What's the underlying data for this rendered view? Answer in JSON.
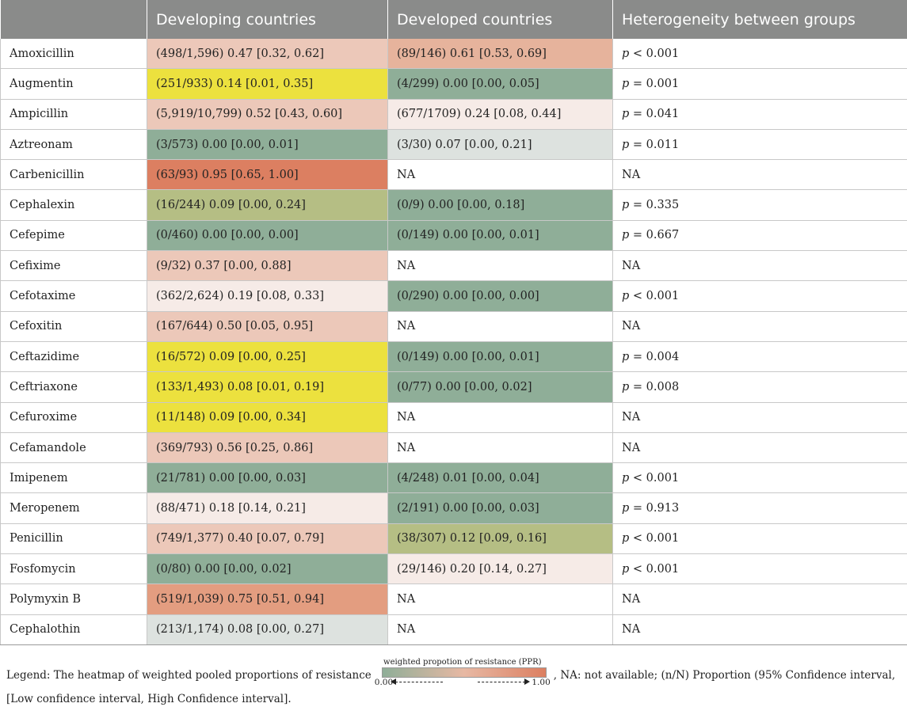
{
  "colors": {
    "header": "#8a8b8a",
    "na": "#ffffff",
    "very_low": "#8fae98",
    "yellow": "#ece13e",
    "olive": "#b5be84",
    "grey_green": "#dde2df",
    "light_pink": "#f6ebe7",
    "pink": "#ecc8b9",
    "salmon": "#e6b39c",
    "orange": "#e39d80",
    "dark_orange": "#dc7f61"
  },
  "table": {
    "headers": [
      "",
      "Developing countries",
      "Developed countries",
      "Heterogeneity between groups"
    ],
    "rows": [
      {
        "drug": "Amoxicillin",
        "developing": "(498/1,596) 0.47 [0.32, 0.62]",
        "developing_color": "pink",
        "developed": "(89/146) 0.61 [0.53, 0.69]",
        "developed_color": "salmon",
        "p_sym": "p",
        "p_text": " < 0.001"
      },
      {
        "drug": "Augmentin",
        "developing": "(251/933) 0.14 [0.01, 0.35]",
        "developing_color": "yellow",
        "developed": "(4/299) 0.00 [0.00, 0.05]",
        "developed_color": "very_low",
        "p_sym": "p",
        "p_text": " = 0.001"
      },
      {
        "drug": "Ampicillin",
        "developing": "(5,919/10,799) 0.52 [0.43, 0.60]",
        "developing_color": "pink",
        "developed": "(677/1709) 0.24 [0.08, 0.44]",
        "developed_color": "light_pink",
        "p_sym": "p",
        "p_text": " = 0.041"
      },
      {
        "drug": "Aztreonam",
        "developing": "(3/573) 0.00 [0.00, 0.01]",
        "developing_color": "very_low",
        "developed": "(3/30) 0.07 [0.00, 0.21]",
        "developed_color": "grey_green",
        "p_sym": "p",
        "p_text": " = 0.011"
      },
      {
        "drug": "Carbenicillin",
        "developing": "(63/93) 0.95 [0.65, 1.00]",
        "developing_color": "dark_orange",
        "developed": "NA",
        "developed_color": "na",
        "p_sym": "",
        "p_text": "NA"
      },
      {
        "drug": "Cephalexin",
        "developing": "(16/244) 0.09 [0.00, 0.24]",
        "developing_color": "olive",
        "developed": "(0/9) 0.00 [0.00, 0.18]",
        "developed_color": "very_low",
        "p_sym": "p",
        "p_text": " = 0.335"
      },
      {
        "drug": "Cefepime",
        "developing": "(0/460) 0.00 [0.00, 0.00]",
        "developing_color": "very_low",
        "developed": "(0/149) 0.00 [0.00, 0.01]",
        "developed_color": "very_low",
        "p_sym": "p",
        "p_text": " = 0.667"
      },
      {
        "drug": "Cefixime",
        "developing": "(9/32) 0.37 [0.00, 0.88]",
        "developing_color": "pink",
        "developed": "NA",
        "developed_color": "na",
        "p_sym": "",
        "p_text": "NA"
      },
      {
        "drug": "Cefotaxime",
        "developing": "(362/2,624) 0.19 [0.08, 0.33]",
        "developing_color": "light_pink",
        "developed": "(0/290) 0.00 [0.00, 0.00]",
        "developed_color": "very_low",
        "p_sym": "p",
        "p_text": " < 0.001"
      },
      {
        "drug": "Cefoxitin",
        "developing": "(167/644) 0.50 [0.05, 0.95]",
        "developing_color": "pink",
        "developed": "NA",
        "developed_color": "na",
        "p_sym": "",
        "p_text": "NA"
      },
      {
        "drug": "Ceftazidime",
        "developing": "(16/572) 0.09 [0.00, 0.25]",
        "developing_color": "yellow",
        "developed": "(0/149) 0.00 [0.00, 0.01]",
        "developed_color": "very_low",
        "p_sym": "p",
        "p_text": " = 0.004"
      },
      {
        "drug": "Ceftriaxone",
        "developing": "(133/1,493) 0.08 [0.01, 0.19]",
        "developing_color": "yellow",
        "developed": "(0/77) 0.00 [0.00, 0.02]",
        "developed_color": "very_low",
        "p_sym": "p",
        "p_text": " = 0.008"
      },
      {
        "drug": "Cefuroxime",
        "developing": "(11/148) 0.09 [0.00, 0.34]",
        "developing_color": "yellow",
        "developed": "NA",
        "developed_color": "na",
        "p_sym": "",
        "p_text": "NA"
      },
      {
        "drug": "Cefamandole",
        "developing": "(369/793) 0.56 [0.25, 0.86]",
        "developing_color": "pink",
        "developed": "NA",
        "developed_color": "na",
        "p_sym": "",
        "p_text": "NA"
      },
      {
        "drug": "Imipenem",
        "developing": "(21/781) 0.00 [0.00, 0.03]",
        "developing_color": "very_low",
        "developed": "(4/248) 0.01 [0.00, 0.04]",
        "developed_color": "very_low",
        "p_sym": "p",
        "p_text": " < 0.001"
      },
      {
        "drug": "Meropenem",
        "developing": "(88/471) 0.18 [0.14, 0.21]",
        "developing_color": "light_pink",
        "developed": "(2/191) 0.00 [0.00, 0.03]",
        "developed_color": "very_low",
        "p_sym": "p",
        "p_text": " = 0.913"
      },
      {
        "drug": "Penicillin",
        "developing": "(749/1,377) 0.40 [0.07, 0.79]",
        "developing_color": "pink",
        "developed": "(38/307) 0.12 [0.09, 0.16]",
        "developed_color": "olive",
        "p_sym": "p",
        "p_text": " < 0.001"
      },
      {
        "drug": "Fosfomycin",
        "developing": "(0/80) 0.00 [0.00, 0.02]",
        "developing_color": "very_low",
        "developed": "(29/146) 0.20 [0.14, 0.27]",
        "developed_color": "light_pink",
        "p_sym": "p",
        "p_text": " < 0.001"
      },
      {
        "drug": "Polymyxin B",
        "developing": "(519/1,039) 0.75 [0.51, 0.94]",
        "developing_color": "orange",
        "developed": "NA",
        "developed_color": "na",
        "p_sym": "",
        "p_text": "NA"
      },
      {
        "drug": "Cephalothin",
        "developing": "(213/1,174) 0.08 [0.00, 0.27]",
        "developing_color": "grey_green",
        "developed": "NA",
        "developed_color": "na",
        "p_sym": "",
        "p_text": "NA"
      }
    ]
  },
  "legend": {
    "prefix": "Legend: The heatmap of weighted pooled proportions of resistance",
    "scale_title": "weighted propotion of resistance (PPR)",
    "scale_low": "0.00",
    "scale_high": "1.00",
    "suffix": ", NA: not available; (n/N) Proportion (95% Confidence interval, [Low confidence interval, High Confidence interval]."
  }
}
